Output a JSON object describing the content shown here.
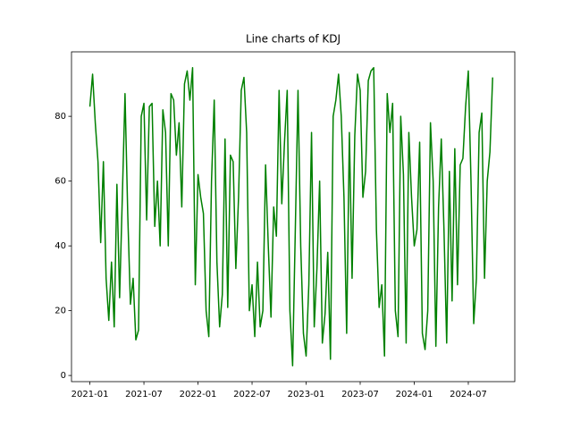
{
  "chart_data": {
    "type": "line",
    "title": "Line charts of KDJ",
    "x": [
      2021.0,
      2021.025,
      2021.05,
      2021.075,
      2021.1,
      2021.125,
      2021.15,
      2021.175,
      2021.2,
      2021.225,
      2021.25,
      2021.275,
      2021.3,
      2021.325,
      2021.35,
      2021.375,
      2021.4,
      2021.425,
      2021.45,
      2021.475,
      2021.5,
      2021.525,
      2021.55,
      2021.575,
      2021.6,
      2021.625,
      2021.65,
      2021.675,
      2021.7,
      2021.725,
      2021.75,
      2021.775,
      2021.8,
      2021.825,
      2021.85,
      2021.875,
      2021.9,
      2021.925,
      2021.95,
      2021.975,
      2022.0,
      2022.025,
      2022.05,
      2022.075,
      2022.1,
      2022.125,
      2022.15,
      2022.175,
      2022.2,
      2022.225,
      2022.25,
      2022.275,
      2022.3,
      2022.325,
      2022.35,
      2022.375,
      2022.4,
      2022.425,
      2022.45,
      2022.475,
      2022.5,
      2022.525,
      2022.55,
      2022.575,
      2022.6,
      2022.625,
      2022.65,
      2022.675,
      2022.7,
      2022.725,
      2022.75,
      2022.775,
      2022.8,
      2022.825,
      2022.85,
      2022.875,
      2022.9,
      2022.925,
      2022.95,
      2022.975,
      2023.0,
      2023.025,
      2023.05,
      2023.075,
      2023.1,
      2023.125,
      2023.15,
      2023.175,
      2023.2,
      2023.225,
      2023.25,
      2023.275,
      2023.3,
      2023.325,
      2023.35,
      2023.375,
      2023.4,
      2023.425,
      2023.45,
      2023.475,
      2023.5,
      2023.525,
      2023.55,
      2023.575,
      2023.6,
      2023.625,
      2023.65,
      2023.675,
      2023.7,
      2023.725,
      2023.75,
      2023.775,
      2023.8,
      2023.825,
      2023.85,
      2023.875,
      2023.9,
      2023.925,
      2023.95,
      2023.975,
      2024.0,
      2024.025,
      2024.05,
      2024.075,
      2024.1,
      2024.125,
      2024.15,
      2024.175,
      2024.2,
      2024.225,
      2024.25,
      2024.275,
      2024.3,
      2024.325,
      2024.35,
      2024.375,
      2024.4,
      2024.425,
      2024.45,
      2024.475,
      2024.5,
      2024.525,
      2024.55,
      2024.575,
      2024.6,
      2024.625,
      2024.65,
      2024.675,
      2024.7,
      2024.725
    ],
    "values": [
      83,
      93,
      78,
      66,
      41,
      66,
      30,
      17,
      35,
      15,
      59,
      24,
      55,
      87,
      50,
      22,
      30,
      11,
      14,
      80,
      84,
      48,
      83,
      84,
      46,
      60,
      40,
      82,
      75,
      40,
      87,
      85,
      68,
      78,
      52,
      90,
      94,
      85,
      95,
      28,
      62,
      55,
      50,
      20,
      12,
      60,
      85,
      35,
      15,
      25,
      73,
      21,
      68,
      66,
      33,
      55,
      88,
      92,
      75,
      20,
      28,
      12,
      35,
      15,
      20,
      65,
      40,
      18,
      52,
      43,
      88,
      53,
      72,
      88,
      20,
      3,
      45,
      88,
      40,
      13,
      6,
      28,
      75,
      15,
      33,
      60,
      10,
      19,
      38,
      5,
      80,
      85,
      93,
      80,
      55,
      13,
      75,
      30,
      74,
      93,
      88,
      55,
      63,
      91,
      94,
      95,
      45,
      21,
      28,
      6,
      87,
      75,
      84,
      20,
      12,
      80,
      62,
      10,
      75,
      55,
      40,
      45,
      72,
      13,
      8,
      20,
      78,
      60,
      9,
      52,
      73,
      45,
      10,
      63,
      23,
      70,
      28,
      65,
      67,
      83,
      94,
      60,
      16,
      30,
      75,
      81,
      30,
      60,
      69,
      92
    ],
    "color": "#008000",
    "xlim": [
      2020.83,
      2024.93
    ],
    "xticks": [
      {
        "value": 2021.0,
        "label": "2021-01"
      },
      {
        "value": 2021.5,
        "label": "2021-07"
      },
      {
        "value": 2022.0,
        "label": "2022-01"
      },
      {
        "value": 2022.5,
        "label": "2022-07"
      },
      {
        "value": 2023.0,
        "label": "2023-01"
      },
      {
        "value": 2023.5,
        "label": "2023-07"
      },
      {
        "value": 2024.0,
        "label": "2024-01"
      },
      {
        "value": 2024.5,
        "label": "2024-07"
      }
    ],
    "ylim": [
      -1.9,
      99.9
    ],
    "yticks": [
      0,
      20,
      40,
      60,
      80
    ]
  }
}
